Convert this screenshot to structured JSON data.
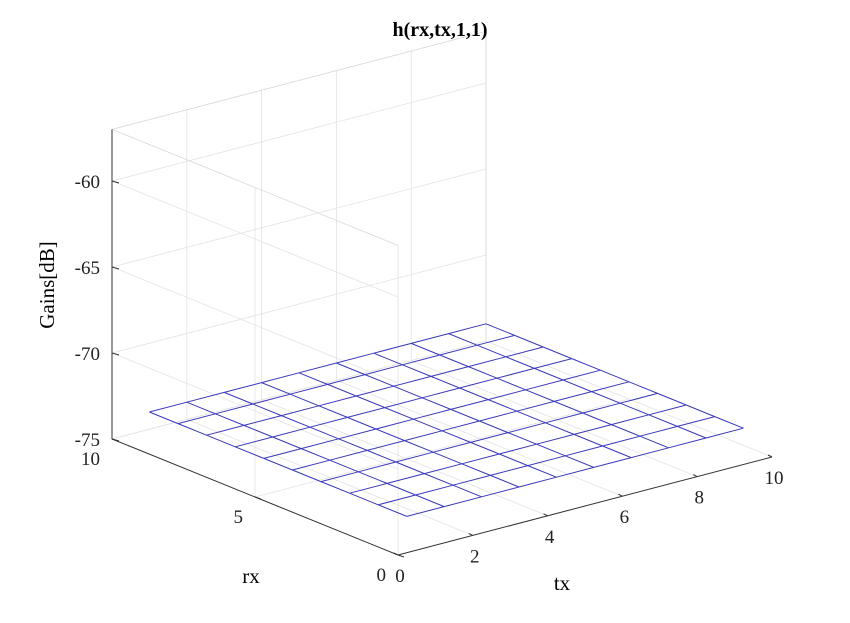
{
  "chart_data": {
    "type": "surface-mesh",
    "title": "h(rx,tx,1,1)",
    "xlabel": "tx",
    "ylabel": "rx",
    "zlabel": "Gains[dB]",
    "xlim": [
      0,
      10
    ],
    "ylim": [
      0,
      10
    ],
    "zlim": [
      -75,
      -57
    ],
    "xticks": [
      "0",
      "2",
      "4",
      "6",
      "8",
      "10"
    ],
    "yticks": [
      "0",
      "5",
      "10"
    ],
    "zticks": [
      "-75",
      "-70",
      "-65",
      "-60"
    ],
    "grid": true,
    "colormap": "parula",
    "x": [
      1,
      2,
      3,
      4,
      5,
      6,
      7,
      8,
      9,
      10
    ],
    "y": [
      1,
      2,
      3,
      4,
      5,
      6,
      7,
      8,
      9,
      10
    ],
    "z": [
      [
        -74,
        -74,
        -74,
        -74,
        -74,
        -74,
        -74,
        -74,
        -74,
        -74
      ],
      [
        -74,
        -74,
        -74,
        -74,
        -74,
        -74,
        -74,
        -74,
        -74,
        -74
      ],
      [
        -74,
        -74,
        -74,
        -74,
        -74,
        -74,
        -74,
        -74,
        -74,
        -74
      ],
      [
        -74,
        -74,
        -74,
        -74,
        -74,
        -74,
        -74,
        -74,
        -74,
        -74
      ],
      [
        -74,
        -74,
        -74,
        -74,
        -74,
        -74,
        -74,
        -74,
        -74,
        -74
      ],
      [
        -74,
        -74,
        -74,
        -74,
        -74,
        -74,
        -74,
        -74,
        -74,
        -74
      ],
      [
        -74,
        -74,
        -74,
        -74,
        -74,
        -74,
        -74,
        -74,
        -74,
        -74
      ],
      [
        -74,
        -74,
        -74,
        -74,
        -74,
        -74,
        -74,
        -74,
        -74,
        -74
      ],
      [
        -74,
        -74,
        -74,
        -74,
        -74,
        -74,
        -74,
        -74,
        -74,
        -74
      ],
      [
        -74,
        -74,
        -74,
        -74,
        -74,
        -74,
        -74,
        -74,
        -74,
        -74
      ]
    ]
  }
}
